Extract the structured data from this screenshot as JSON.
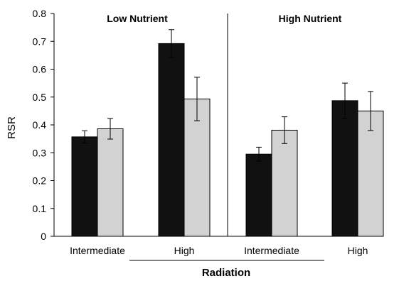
{
  "chart_data": {
    "type": "bar",
    "title": "",
    "ylabel": "RSR",
    "xlabel": "Radiation",
    "ylim": [
      0,
      0.8
    ],
    "yticks": [
      0,
      0.1,
      0.2,
      0.3,
      0.4,
      0.5,
      0.6,
      0.7,
      0.8
    ],
    "ytick_labels": [
      "0",
      "0.1",
      "0.2",
      "0.3",
      "0.4",
      "0.5",
      "0.6",
      "0.7",
      "0.8"
    ],
    "panels": [
      "Low Nutrient",
      "High Nutrient"
    ],
    "categories": [
      "Intermediate",
      "High",
      "Intermediate",
      "High"
    ],
    "series": [
      {
        "color": "#111111",
        "values": [
          0.357,
          0.692,
          0.295,
          0.487
        ],
        "errors": [
          0.022,
          0.05,
          0.025,
          0.063
        ]
      },
      {
        "color": "#d2d2d2",
        "values": [
          0.386,
          0.493,
          0.381,
          0.45
        ],
        "errors": [
          0.037,
          0.078,
          0.048,
          0.07
        ]
      }
    ],
    "grid": false,
    "legend": "none"
  }
}
